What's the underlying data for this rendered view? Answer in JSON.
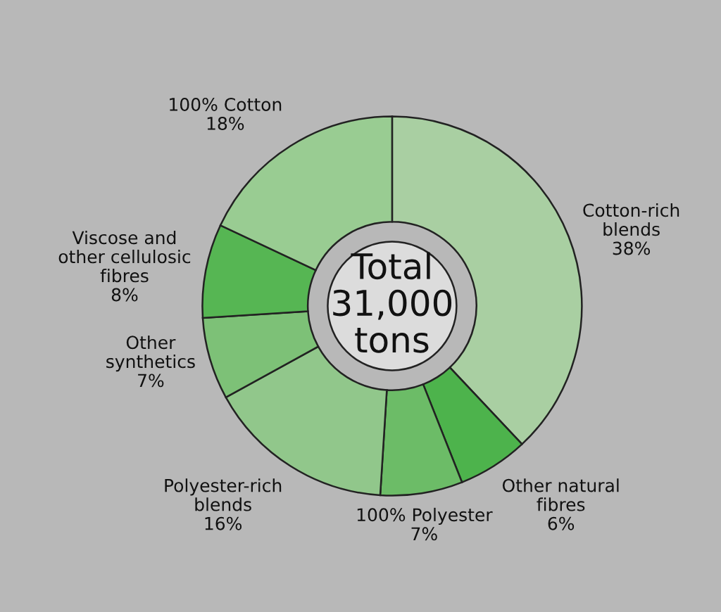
{
  "chart_data": {
    "type": "donut",
    "categories": [
      "Cotton-rich\nblends",
      "Other natural\nfibres",
      "100% Polyester",
      "Polyester-rich\nblends",
      "Other\nsynthetics",
      "Viscose and\nother cellulosic\nfibres",
      "100% Cotton"
    ],
    "values": [
      38,
      6,
      7,
      16,
      7,
      8,
      18
    ],
    "value_labels": [
      "38%",
      "6%",
      "7%",
      "16%",
      "7%",
      "8%",
      "18%"
    ],
    "colors": [
      "#a9cfa2",
      "#4db34c",
      "#6cbc67",
      "#91c78b",
      "#7dc177",
      "#56b653",
      "#99cc92"
    ],
    "annotations": [
      "Total\n31,000\ntons"
    ],
    "legend": false
  }
}
